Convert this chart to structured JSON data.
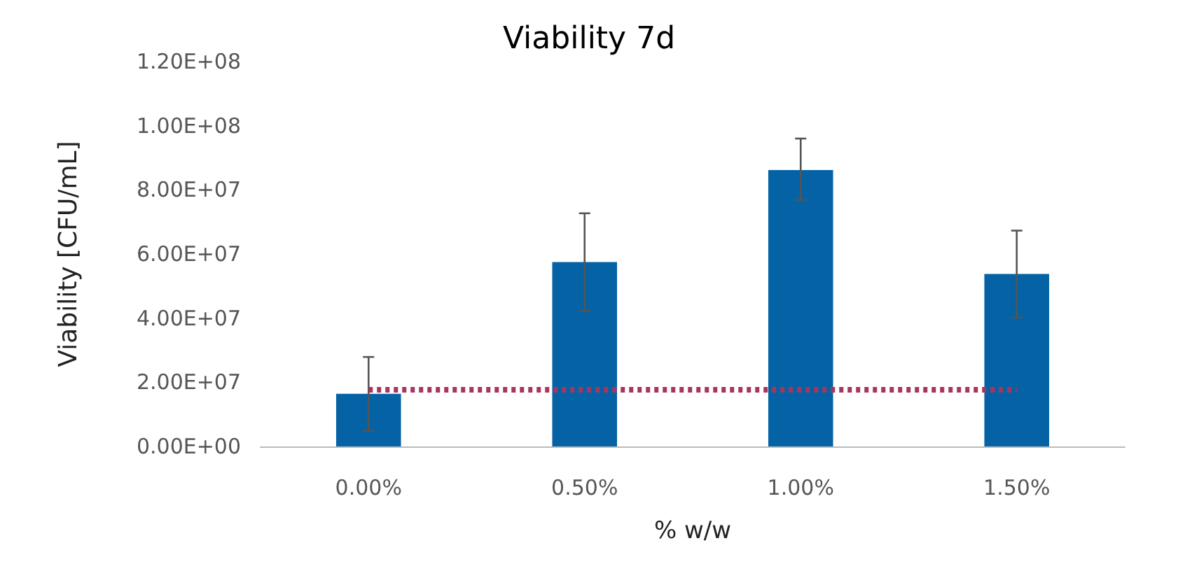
{
  "chart_data": {
    "type": "bar",
    "title": "Viability 7d",
    "xlabel": "% w/w",
    "ylabel": "Viability [CFU/mL]",
    "categories": [
      "0.00%",
      "0.50%",
      "1.00%",
      "1.50%"
    ],
    "series": [
      {
        "color": "#0563a5",
        "values": [
          16400000,
          57500000,
          86200000,
          53800000
        ],
        "errors": [
          [
            4900000,
            27900000
          ],
          [
            42300000,
            72700000
          ],
          [
            76800000,
            96000000
          ],
          [
            40200000,
            67300000
          ]
        ]
      },
      {
        "type": "line",
        "color": "#a8355e",
        "line_style": "dotted",
        "marker": "none",
        "values": [
          17700000,
          17700000,
          17700000,
          17700000
        ]
      }
    ],
    "ylim": [
      0,
      120000000
    ],
    "yticks": [
      {
        "value": 0,
        "label": "0.00E+00"
      },
      {
        "value": 20000000,
        "label": "2.00E+07"
      },
      {
        "value": 40000000,
        "label": "4.00E+07"
      },
      {
        "value": 60000000,
        "label": "6.00E+07"
      },
      {
        "value": 80000000,
        "label": "8.00E+07"
      },
      {
        "value": 100000000,
        "label": "1.00E+08"
      },
      {
        "value": 120000000,
        "label": "1.20E+08"
      }
    ],
    "grid": false
  }
}
